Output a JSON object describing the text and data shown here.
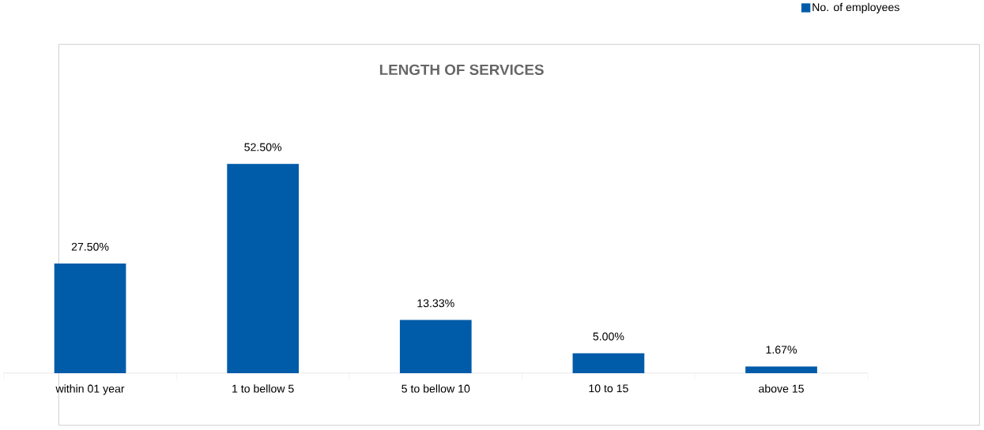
{
  "chart_data": {
    "type": "bar",
    "title": "LENGTH OF SERVICES",
    "categories": [
      "within 01 year",
      "1 to bellow 5",
      "5 to bellow 10",
      "10 to 15",
      "above 15"
    ],
    "series": [
      {
        "name": "No. of employees",
        "color": "#005ba9",
        "values": [
          27.5,
          52.5,
          13.33,
          5.0,
          1.67
        ],
        "value_labels": [
          "27.50%",
          "52.50%",
          "13.33%",
          "5.00%",
          "1.67%"
        ]
      }
    ],
    "legend": "top right",
    "grid": false
  }
}
